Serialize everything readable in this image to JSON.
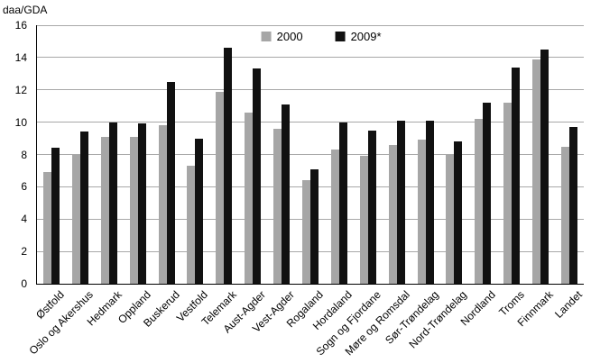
{
  "chart_data": {
    "type": "bar",
    "title": "",
    "ylabel": "daa/GDA",
    "xlabel": "",
    "ylim": [
      0,
      16
    ],
    "ytick_step": 2,
    "grid": true,
    "legend_position": "top-center",
    "categories": [
      "Østfold",
      "Oslo og Akershus",
      "Hedmark",
      "Oppland",
      "Buskerud",
      "Vestfold",
      "Telemark",
      "Aust-Agder",
      "Vest-Agder",
      "Rogaland",
      "Hordaland",
      "Sogn og Fjordane",
      "Møre og Romsdal",
      "Sør-Trøndelag",
      "Nord-Trøndelag",
      "Nordland",
      "Troms",
      "Finnmark",
      "Landet"
    ],
    "series": [
      {
        "name": "2000",
        "color": "#a6a6a6",
        "values": [
          6.9,
          8.0,
          9.1,
          9.1,
          9.8,
          7.3,
          11.9,
          10.6,
          9.6,
          6.4,
          8.3,
          7.9,
          8.6,
          8.9,
          8.0,
          10.2,
          11.2,
          13.9,
          8.5
        ]
      },
      {
        "name": "2009*",
        "color": "#111111",
        "values": [
          8.4,
          9.4,
          10.0,
          9.9,
          12.5,
          9.0,
          14.6,
          13.3,
          11.1,
          7.1,
          10.0,
          9.5,
          10.1,
          10.1,
          8.8,
          11.2,
          13.4,
          14.5,
          9.7
        ]
      }
    ]
  }
}
